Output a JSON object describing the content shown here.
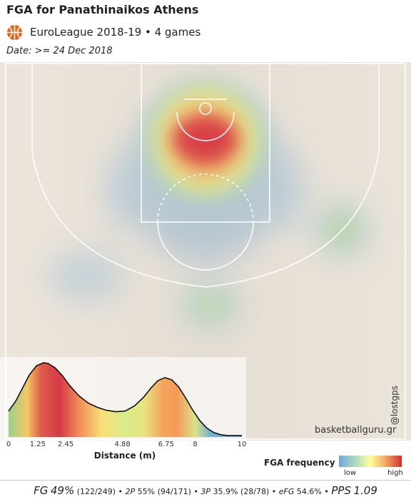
{
  "header": {
    "title": "FGA for Panathinaikos Athens",
    "subtitle": "EuroLeague 2018-19 • 4 games",
    "date": "Date: >= 24 Dec 2018"
  },
  "branding": {
    "logo_icon": "euroleague-ball-icon",
    "logo_color": "#e8641b",
    "watermark": "basketballguru.gr",
    "handle": "@lostgps"
  },
  "legend": {
    "title": "FGA frequency",
    "low": "low",
    "high": "high",
    "colors": [
      "#6fa8dc",
      "#a9d9c0",
      "#ffff99",
      "#f4a460",
      "#d32f2f"
    ]
  },
  "stats": {
    "fg_label": "FG",
    "fg_pct": "49%",
    "fg_count": "(122/249)",
    "p2_label": "2P",
    "p2_pct": "55%",
    "p2_count": "(94/171)",
    "p3_label": "3P",
    "p3_pct": "35.9%",
    "p3_count": "(28/78)",
    "efg_label": "eFG",
    "efg_pct": "54.6%",
    "pps_label": "PPS",
    "pps_value": "1.09",
    "separator": "•"
  },
  "chart_data": {
    "type": "area",
    "subtype": "density of shot distance",
    "xlabel": "Distance (m)",
    "xlim": [
      0,
      10
    ],
    "ylim": [
      0,
      1
    ],
    "ticks": [
      {
        "value": 0,
        "label": "0"
      },
      {
        "value": 1.25,
        "label": "1.25"
      },
      {
        "value": 2.45,
        "label": "2.45"
      },
      {
        "value": 4.88,
        "label": "4.88"
      },
      {
        "value": 6.75,
        "label": "6.75"
      },
      {
        "value": 8,
        "label": "8"
      },
      {
        "value": 10,
        "label": "10"
      }
    ],
    "x": [
      0,
      0.3,
      0.6,
      0.9,
      1.2,
      1.5,
      1.7,
      2.0,
      2.3,
      2.6,
      3.0,
      3.4,
      3.8,
      4.2,
      4.6,
      5.0,
      5.4,
      5.8,
      6.1,
      6.4,
      6.7,
      7.0,
      7.3,
      7.6,
      7.9,
      8.2,
      8.5,
      8.8,
      9.1,
      9.4,
      9.7,
      10
    ],
    "y": [
      0.35,
      0.48,
      0.66,
      0.84,
      0.96,
      1.0,
      0.99,
      0.93,
      0.83,
      0.7,
      0.56,
      0.46,
      0.4,
      0.36,
      0.34,
      0.35,
      0.42,
      0.54,
      0.66,
      0.76,
      0.8,
      0.77,
      0.67,
      0.52,
      0.36,
      0.22,
      0.12,
      0.06,
      0.03,
      0.02,
      0.02,
      0.02
    ]
  }
}
